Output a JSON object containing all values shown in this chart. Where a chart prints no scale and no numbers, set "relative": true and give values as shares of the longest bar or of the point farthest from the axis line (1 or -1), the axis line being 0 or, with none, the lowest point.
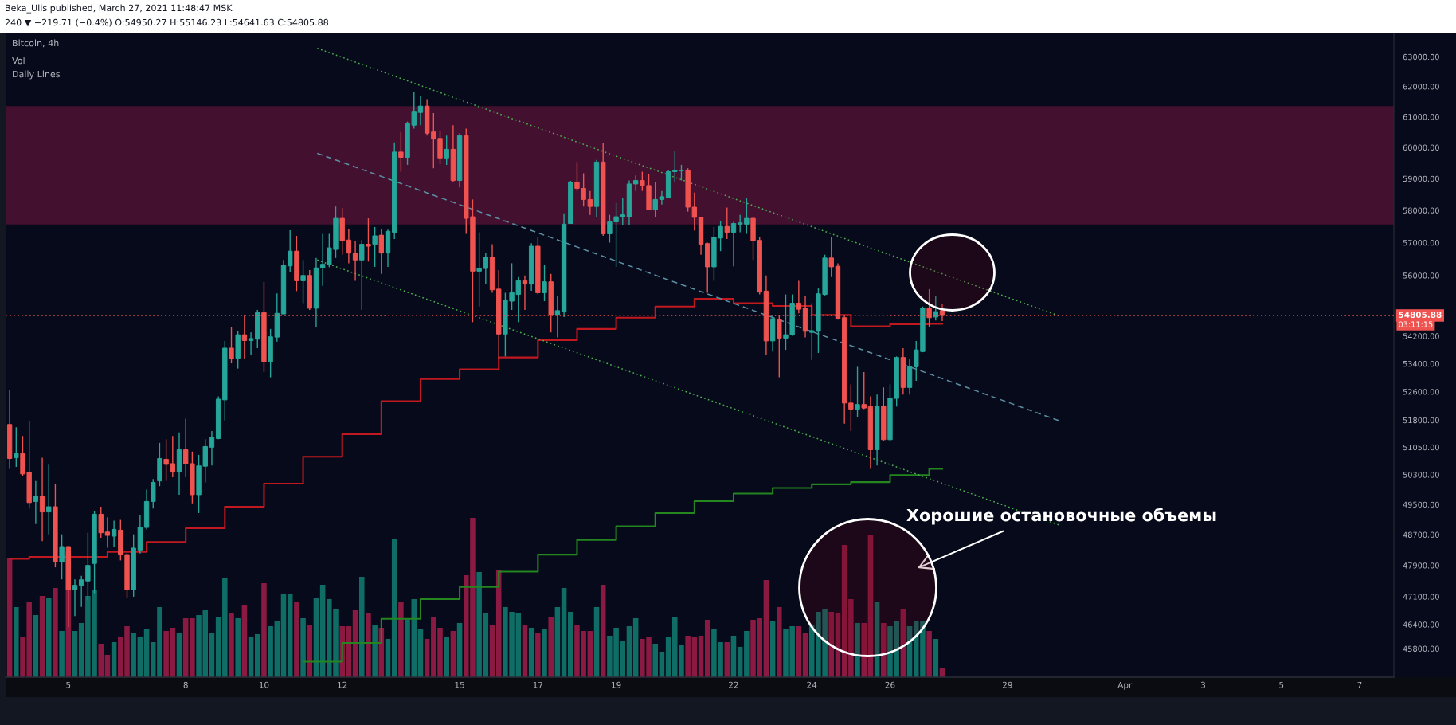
{
  "chart_data": [
    {
      "type": "candlestick",
      "title": "Bitcoin, 4h",
      "x": [
        "2021-03-03T12:00",
        "2021-03-03T16:00",
        "2021-03-03T20:00",
        "2021-03-04T00:00",
        "2021-03-04T04:00",
        "2021-03-04T08:00",
        "2021-03-04T12:00",
        "2021-03-04T16:00",
        "2021-03-04T20:00",
        "2021-03-05T00:00",
        "2021-03-05T04:00",
        "2021-03-05T08:00",
        "2021-03-05T12:00",
        "2021-03-05T16:00",
        "2021-03-05T20:00",
        "2021-03-06T00:00",
        "2021-03-06T04:00",
        "2021-03-06T08:00",
        "2021-03-06T12:00",
        "2021-03-06T16:00",
        "2021-03-06T20:00",
        "2021-03-07T00:00",
        "2021-03-07T04:00",
        "2021-03-07T08:00",
        "2021-03-07T12:00",
        "2021-03-07T16:00",
        "2021-03-07T20:00",
        "2021-03-08T00:00",
        "2021-03-08T04:00",
        "2021-03-08T08:00",
        "2021-03-08T12:00",
        "2021-03-08T16:00",
        "2021-03-08T20:00",
        "2021-03-09T00:00",
        "2021-03-09T04:00",
        "2021-03-09T08:00",
        "2021-03-09T12:00",
        "2021-03-09T16:00",
        "2021-03-09T20:00",
        "2021-03-10T00:00",
        "2021-03-10T04:00",
        "2021-03-10T08:00",
        "2021-03-10T12:00",
        "2021-03-10T16:00",
        "2021-03-10T20:00",
        "2021-03-11T00:00",
        "2021-03-11T04:00",
        "2021-03-11T08:00",
        "2021-03-11T12:00",
        "2021-03-11T16:00",
        "2021-03-11T20:00",
        "2021-03-12T00:00",
        "2021-03-12T04:00",
        "2021-03-12T08:00",
        "2021-03-12T12:00",
        "2021-03-12T16:00",
        "2021-03-12T20:00",
        "2021-03-13T00:00",
        "2021-03-13T04:00",
        "2021-03-13T08:00",
        "2021-03-13T12:00",
        "2021-03-13T16:00",
        "2021-03-13T20:00",
        "2021-03-14T00:00",
        "2021-03-14T04:00",
        "2021-03-14T08:00",
        "2021-03-14T12:00",
        "2021-03-14T16:00",
        "2021-03-14T20:00",
        "2021-03-15T00:00",
        "2021-03-15T04:00",
        "2021-03-15T08:00",
        "2021-03-15T12:00",
        "2021-03-15T16:00",
        "2021-03-15T20:00",
        "2021-03-16T00:00",
        "2021-03-16T04:00",
        "2021-03-16T08:00",
        "2021-03-16T12:00",
        "2021-03-16T16:00",
        "2021-03-16T20:00",
        "2021-03-17T00:00",
        "2021-03-17T04:00",
        "2021-03-17T08:00",
        "2021-03-17T12:00",
        "2021-03-17T16:00",
        "2021-03-17T20:00",
        "2021-03-18T00:00",
        "2021-03-18T04:00",
        "2021-03-18T08:00",
        "2021-03-18T12:00",
        "2021-03-18T16:00",
        "2021-03-18T20:00",
        "2021-03-19T00:00",
        "2021-03-19T04:00",
        "2021-03-19T08:00",
        "2021-03-19T12:00",
        "2021-03-19T16:00",
        "2021-03-19T20:00",
        "2021-03-20T00:00",
        "2021-03-20T04:00",
        "2021-03-20T08:00",
        "2021-03-20T12:00",
        "2021-03-20T16:00",
        "2021-03-20T20:00",
        "2021-03-21T00:00",
        "2021-03-21T04:00",
        "2021-03-21T08:00",
        "2021-03-21T12:00",
        "2021-03-21T16:00",
        "2021-03-21T20:00",
        "2021-03-22T00:00",
        "2021-03-22T04:00",
        "2021-03-22T08:00",
        "2021-03-22T12:00",
        "2021-03-22T16:00",
        "2021-03-22T20:00",
        "2021-03-23T00:00",
        "2021-03-23T04:00",
        "2021-03-23T08:00",
        "2021-03-23T12:00",
        "2021-03-23T16:00",
        "2021-03-23T20:00",
        "2021-03-24T00:00",
        "2021-03-24T04:00",
        "2021-03-24T08:00",
        "2021-03-24T12:00",
        "2021-03-24T16:00",
        "2021-03-24T20:00",
        "2021-03-25T00:00",
        "2021-03-25T04:00",
        "2021-03-25T08:00",
        "2021-03-25T12:00",
        "2021-03-25T16:00",
        "2021-03-25T20:00",
        "2021-03-26T00:00",
        "2021-03-26T04:00",
        "2021-03-26T08:00",
        "2021-03-26T12:00",
        "2021-03-26T16:00",
        "2021-03-26T20:00",
        "2021-03-27T00:00",
        "2021-03-27T04:00",
        "2021-03-27T08:00"
      ],
      "ohlc": [
        [
          51680,
          52650,
          50460,
          50740
        ],
        [
          50760,
          51600,
          50510,
          50880
        ],
        [
          50880,
          51360,
          50270,
          50320
        ],
        [
          50370,
          51770,
          49390,
          49550
        ],
        [
          49580,
          50130,
          48980,
          49720
        ],
        [
          49720,
          50760,
          48530,
          49300
        ],
        [
          49300,
          50570,
          48710,
          49440
        ],
        [
          49440,
          50040,
          47850,
          47990
        ],
        [
          47990,
          48710,
          47540,
          48390
        ],
        [
          48390,
          48400,
          46330,
          47280
        ],
        [
          47280,
          47540,
          46610,
          47390
        ],
        [
          47390,
          47630,
          46840,
          47530
        ],
        [
          47500,
          48750,
          47020,
          47900
        ],
        [
          47950,
          49330,
          47190,
          49240
        ],
        [
          49240,
          49440,
          48620,
          48750
        ],
        [
          48770,
          49160,
          48360,
          48680
        ],
        [
          48660,
          49070,
          48390,
          48840
        ],
        [
          48820,
          49090,
          48030,
          48170
        ],
        [
          48180,
          48210,
          47060,
          47280
        ],
        [
          47280,
          48710,
          47100,
          48350
        ],
        [
          48300,
          49210,
          48210,
          48890
        ],
        [
          48890,
          49900,
          48840,
          49580
        ],
        [
          49580,
          50180,
          49390,
          50090
        ],
        [
          50130,
          51170,
          49990,
          50740
        ],
        [
          50720,
          51270,
          50130,
          50580
        ],
        [
          50600,
          51360,
          50230,
          50370
        ],
        [
          50370,
          51460,
          49760,
          50980
        ],
        [
          50980,
          51840,
          50230,
          50600
        ],
        [
          50600,
          50930,
          49530,
          49760
        ],
        [
          49760,
          50840,
          49270,
          50540
        ],
        [
          50530,
          51270,
          50090,
          51070
        ],
        [
          51050,
          51500,
          50550,
          51330
        ],
        [
          51290,
          52470,
          51270,
          52390
        ],
        [
          52370,
          54060,
          51790,
          53850
        ],
        [
          53850,
          54460,
          53410,
          53540
        ],
        [
          53560,
          54340,
          53260,
          54240
        ],
        [
          54240,
          54820,
          53540,
          54070
        ],
        [
          54070,
          54310,
          53640,
          54130
        ],
        [
          54110,
          54970,
          53850,
          54890
        ],
        [
          54890,
          55810,
          53160,
          53460
        ],
        [
          53460,
          54410,
          53010,
          54180
        ],
        [
          54170,
          55460,
          54040,
          54870
        ],
        [
          54850,
          56470,
          54840,
          56320
        ],
        [
          56290,
          57380,
          56110,
          56740
        ],
        [
          56740,
          57210,
          55530,
          55840
        ],
        [
          55840,
          56470,
          55170,
          56000
        ],
        [
          56000,
          56160,
          54970,
          55020
        ],
        [
          55020,
          56530,
          54460,
          56230
        ],
        [
          56230,
          57270,
          55690,
          56340
        ],
        [
          56320,
          57270,
          56250,
          56840
        ],
        [
          56790,
          58120,
          56530,
          57750
        ],
        [
          57750,
          58070,
          56630,
          57050
        ],
        [
          57080,
          57430,
          56370,
          56680
        ],
        [
          56680,
          57050,
          55840,
          56470
        ],
        [
          56470,
          57080,
          54970,
          56950
        ],
        [
          56950,
          57750,
          56420,
          56890
        ],
        [
          56950,
          57480,
          56260,
          57210
        ],
        [
          57230,
          57430,
          56050,
          56680
        ],
        [
          56680,
          57400,
          56260,
          57350
        ],
        [
          57320,
          60160,
          57110,
          59850
        ],
        [
          59850,
          60500,
          59220,
          59680
        ],
        [
          59680,
          60840,
          59440,
          60780
        ],
        [
          60720,
          61810,
          60610,
          61180
        ],
        [
          61140,
          61690,
          60720,
          61350
        ],
        [
          61350,
          61580,
          60380,
          60460
        ],
        [
          60500,
          61120,
          59330,
          60270
        ],
        [
          60290,
          60550,
          59460,
          59660
        ],
        [
          59660,
          60380,
          59440,
          59940
        ],
        [
          59940,
          60720,
          58890,
          58940
        ],
        [
          58940,
          60460,
          58720,
          60380
        ],
        [
          60380,
          60610,
          57270,
          57750
        ],
        [
          57800,
          58340,
          54610,
          56130
        ],
        [
          56130,
          57320,
          55070,
          56210
        ],
        [
          56210,
          56680,
          55740,
          56550
        ],
        [
          56550,
          56950,
          55480,
          55570
        ],
        [
          55590,
          56160,
          53560,
          54260
        ],
        [
          54260,
          55480,
          53610,
          55260
        ],
        [
          55230,
          56370,
          54970,
          55480
        ],
        [
          55430,
          55950,
          54610,
          55840
        ],
        [
          55840,
          56000,
          54970,
          55740
        ],
        [
          55740,
          56980,
          55540,
          56890
        ],
        [
          56890,
          57160,
          55430,
          55480
        ],
        [
          55480,
          56320,
          55230,
          55810
        ],
        [
          55810,
          56050,
          54310,
          54820
        ],
        [
          54820,
          55380,
          54160,
          54950
        ],
        [
          54920,
          57910,
          54760,
          57570
        ],
        [
          57590,
          58930,
          57580,
          58880
        ],
        [
          58880,
          59530,
          58610,
          58690
        ],
        [
          58690,
          59170,
          58120,
          58340
        ],
        [
          58340,
          58610,
          57860,
          58120
        ],
        [
          58120,
          59600,
          57800,
          59530
        ],
        [
          59530,
          60130,
          57210,
          57270
        ],
        [
          57270,
          57860,
          57000,
          57640
        ],
        [
          57640,
          58230,
          56260,
          57800
        ],
        [
          57800,
          58400,
          57530,
          57860
        ],
        [
          57800,
          58940,
          57530,
          58830
        ],
        [
          58830,
          59100,
          58610,
          58940
        ],
        [
          58940,
          59220,
          58610,
          58780
        ],
        [
          58780,
          59140,
          58000,
          58020
        ],
        [
          58020,
          58890,
          57800,
          58340
        ],
        [
          58340,
          58610,
          58180,
          58430
        ],
        [
          58400,
          59270,
          58390,
          59220
        ],
        [
          59220,
          59880,
          58890,
          59270
        ],
        [
          59250,
          59440,
          58940,
          59270
        ],
        [
          59270,
          59330,
          57960,
          58100
        ],
        [
          58100,
          58560,
          57370,
          57780
        ],
        [
          57780,
          57800,
          56630,
          56950
        ],
        [
          56970,
          57000,
          55480,
          56260
        ],
        [
          56260,
          57480,
          55840,
          57160
        ],
        [
          57140,
          57670,
          56740,
          57500
        ],
        [
          57500,
          58090,
          57110,
          57320
        ],
        [
          57320,
          57640,
          56280,
          57590
        ],
        [
          57570,
          57860,
          57320,
          57610
        ],
        [
          57570,
          58400,
          57270,
          57750
        ],
        [
          57750,
          57780,
          56470,
          57050
        ],
        [
          57070,
          57160,
          55430,
          55500
        ],
        [
          55530,
          56000,
          53660,
          54060
        ],
        [
          54060,
          54820,
          53750,
          54710
        ],
        [
          54680,
          54820,
          53010,
          54140
        ],
        [
          54140,
          55430,
          53800,
          54240
        ],
        [
          54240,
          55430,
          54210,
          55170
        ],
        [
          55170,
          55840,
          54870,
          54990
        ],
        [
          55020,
          55380,
          54160,
          54340
        ],
        [
          54310,
          55170,
          53510,
          54360
        ],
        [
          54340,
          55610,
          53710,
          55450
        ],
        [
          55430,
          56630,
          55400,
          56530
        ],
        [
          56530,
          57180,
          55950,
          56260
        ],
        [
          56280,
          56370,
          54680,
          54710
        ],
        [
          54740,
          54820,
          51700,
          52280
        ],
        [
          52280,
          52810,
          51500,
          52110
        ],
        [
          52110,
          53310,
          51890,
          52240
        ],
        [
          52240,
          53160,
          52110,
          52140
        ],
        [
          52180,
          52470,
          50460,
          50980
        ],
        [
          50980,
          52520,
          50550,
          52200
        ],
        [
          52200,
          52720,
          51220,
          51260
        ],
        [
          51260,
          52810,
          51220,
          52420
        ],
        [
          52410,
          53610,
          52180,
          53580
        ],
        [
          53580,
          53850,
          52520,
          52720
        ],
        [
          52720,
          53540,
          52520,
          53310
        ],
        [
          53310,
          54060,
          52910,
          53800
        ],
        [
          53750,
          55070,
          53730,
          55020
        ],
        [
          55020,
          55590,
          54460,
          54740
        ],
        [
          54760,
          55380,
          54660,
          54920
        ],
        [
          54950.27,
          55146.23,
          54641.63,
          54805.88
        ]
      ],
      "colors": [
        "#ef5350",
        "#26a69a",
        "#ef5350",
        "#ef5350",
        "#26a69a",
        "#ef5350",
        "#26a69a",
        "#ef5350",
        "#26a69a",
        "#ef5350",
        "#26a69a",
        "#26a69a",
        "#26a69a",
        "#26a69a",
        "#ef5350",
        "#ef5350",
        "#26a69a",
        "#ef5350",
        "#ef5350",
        "#26a69a",
        "#26a69a",
        "#26a69a",
        "#26a69a",
        "#26a69a",
        "#ef5350",
        "#ef5350",
        "#26a69a",
        "#ef5350",
        "#ef5350",
        "#26a69a",
        "#26a69a",
        "#26a69a",
        "#26a69a",
        "#26a69a",
        "#ef5350",
        "#26a69a",
        "#ef5350",
        "#26a69a",
        "#26a69a",
        "#ef5350",
        "#26a69a",
        "#26a69a",
        "#26a69a",
        "#26a69a",
        "#ef5350",
        "#26a69a",
        "#ef5350",
        "#26a69a",
        "#26a69a",
        "#26a69a",
        "#26a69a",
        "#ef5350",
        "#ef5350",
        "#ef5350",
        "#26a69a",
        "#ef5350",
        "#26a69a",
        "#ef5350",
        "#26a69a",
        "#26a69a",
        "#ef5350",
        "#26a69a",
        "#26a69a",
        "#26a69a",
        "#ef5350",
        "#ef5350",
        "#ef5350",
        "#26a69a",
        "#ef5350",
        "#26a69a",
        "#ef5350",
        "#ef5350",
        "#26a69a",
        "#26a69a",
        "#ef5350",
        "#ef5350",
        "#26a69a",
        "#26a69a",
        "#26a69a",
        "#ef5350",
        "#26a69a",
        "#ef5350",
        "#26a69a",
        "#ef5350",
        "#26a69a",
        "#26a69a",
        "#26a69a",
        "#ef5350",
        "#ef5350",
        "#ef5350",
        "#26a69a",
        "#ef5350",
        "#26a69a",
        "#26a69a",
        "#26a69a",
        "#26a69a",
        "#26a69a",
        "#ef5350",
        "#ef5350",
        "#26a69a",
        "#26a69a",
        "#26a69a",
        "#26a69a",
        "#26a69a",
        "#ef5350",
        "#ef5350",
        "#ef5350",
        "#ef5350",
        "#26a69a",
        "#26a69a",
        "#ef5350",
        "#26a69a",
        "#26a69a",
        "#26a69a",
        "#ef5350",
        "#ef5350",
        "#ef5350",
        "#26a69a",
        "#ef5350",
        "#26a69a",
        "#26a69a",
        "#ef5350",
        "#ef5350",
        "#26a69a",
        "#26a69a",
        "#26a69a",
        "#ef5350",
        "#ef5350",
        "#ef5350",
        "#ef5350",
        "#26a69a",
        "#ef5350",
        "#ef5350",
        "#26a69a",
        "#ef5350",
        "#26a69a",
        "#26a69a",
        "#ef5350",
        "#26a69a",
        "#26a69a",
        "#26a69a",
        "#ef5350",
        "#26a69a",
        "#ef5350"
      ],
      "log": true,
      "xlim": [
        "2021-03-03T09:30",
        "2021-04-07T21:00"
      ],
      "ylim": [
        45100,
        63800
      ],
      "xticks": [
        {
          "value": "2021-03-05",
          "label": "5"
        },
        {
          "value": "2021-03-08",
          "label": "8"
        },
        {
          "value": "2021-03-10",
          "label": "10"
        },
        {
          "value": "2021-03-12",
          "label": "12"
        },
        {
          "value": "2021-03-15",
          "label": "15"
        },
        {
          "value": "2021-03-17",
          "label": "17"
        },
        {
          "value": "2021-03-19",
          "label": "19"
        },
        {
          "value": "2021-03-22",
          "label": "22"
        },
        {
          "value": "2021-03-24",
          "label": "24"
        },
        {
          "value": "2021-03-26",
          "label": "26"
        },
        {
          "value": "2021-03-29",
          "label": "29"
        },
        {
          "value": "2021-04-01",
          "label": "Apr"
        },
        {
          "value": "2021-04-03",
          "label": "3"
        },
        {
          "value": "2021-04-05",
          "label": "5"
        },
        {
          "value": "2021-04-07",
          "label": "7"
        }
      ],
      "yticks": [
        {
          "value": 63000,
          "label": "63000.00"
        },
        {
          "value": 62000,
          "label": "62000.00"
        },
        {
          "value": 61000,
          "label": "61000.00"
        },
        {
          "value": 60000,
          "label": "60000.00"
        },
        {
          "value": 59000,
          "label": "59000.00"
        },
        {
          "value": 58000,
          "label": "58000.00"
        },
        {
          "value": 57000,
          "label": "57000.00"
        },
        {
          "value": 56000,
          "label": "56000.00"
        },
        {
          "value": 54200,
          "label": "54200.00"
        },
        {
          "value": 53400,
          "label": "53400.00"
        },
        {
          "value": 52600,
          "label": "52600.00"
        },
        {
          "value": 51800,
          "label": "51800.00"
        },
        {
          "value": 51050,
          "label": "51050.00"
        },
        {
          "value": 50300,
          "label": "50300.00"
        },
        {
          "value": 49500,
          "label": "49500.00"
        },
        {
          "value": 48700,
          "label": "48700.00"
        },
        {
          "value": 47900,
          "label": "47900.00"
        },
        {
          "value": 47100,
          "label": "47100.00"
        },
        {
          "value": 46400,
          "label": "46400.00"
        },
        {
          "value": 45800,
          "label": "45800.00"
        }
      ],
      "bands": [
        {
          "axis": "y",
          "from": 57560,
          "to": 61350,
          "color": "#44102f"
        }
      ],
      "ref_lines": [
        {
          "axis": "y",
          "value": 54805.88,
          "label": "54805.88",
          "color": "#ef5350",
          "line_style": "dotted"
        }
      ],
      "series": [
        {
          "type": "step",
          "color": "#c2181f",
          "x": [
            "2021-03-03T12:00",
            "2021-03-04",
            "2021-03-05",
            "2021-03-06",
            "2021-03-07",
            "2021-03-08",
            "2021-03-09",
            "2021-03-10",
            "2021-03-11",
            "2021-03-12",
            "2021-03-13",
            "2021-03-14",
            "2021-03-15",
            "2021-03-16",
            "2021-03-17",
            "2021-03-18",
            "2021-03-19",
            "2021-03-20",
            "2021-03-21",
            "2021-03-22",
            "2021-03-23",
            "2021-03-24",
            "2021-03-25",
            "2021-03-26",
            "2021-03-27",
            "2021-03-27T08:00"
          ],
          "values": [
            48070,
            48120,
            48120,
            48250,
            48510,
            48870,
            49440,
            50060,
            50790,
            51410,
            52330,
            52960,
            53240,
            53580,
            54080,
            54410,
            54740,
            55070,
            55300,
            55170,
            55090,
            54820,
            54490,
            54550,
            54560,
            54560
          ]
        },
        {
          "type": "step",
          "color": "#23861f",
          "x": [
            "2021-03-11",
            "2021-03-12",
            "2021-03-13",
            "2021-03-14",
            "2021-03-15",
            "2021-03-16",
            "2021-03-17",
            "2021-03-18",
            "2021-03-19",
            "2021-03-20",
            "2021-03-21",
            "2021-03-22",
            "2021-03-23",
            "2021-03-24",
            "2021-03-25",
            "2021-03-26",
            "2021-03-27",
            "2021-03-27T08:00"
          ],
          "values": [
            45480,
            45940,
            46540,
            47040,
            47350,
            47740,
            48180,
            48560,
            48920,
            49270,
            49590,
            49790,
            49940,
            50040,
            50100,
            50290,
            50460,
            50460
          ]
        },
        {
          "type": "line",
          "color": "#4caf50",
          "line_style": "dotted",
          "x": [
            "2021-03-11T08:40",
            "2021-03-30T07:20"
          ],
          "values": [
            63290,
            54800
          ]
        },
        {
          "type": "line",
          "color": "#5b8fa3",
          "line_style": "dashed",
          "x": [
            "2021-03-11T08:40",
            "2021-03-30T07:20"
          ],
          "values": [
            59810,
            51790
          ]
        },
        {
          "type": "line",
          "color": "#4caf50",
          "line_style": "dotted",
          "x": [
            "2021-03-11T08:40",
            "2021-03-30T07:20"
          ],
          "values": [
            56470,
            48960
          ]
        }
      ],
      "annotations": [
        "Beka_Ulis published, March 27, 2021 11:48:47 MSK",
        "240 ▼ −219.71 (−0.4%) O:54950.27 H:55146.23 L:54641.63 C:54805.88",
        "Vol",
        "Daily Lines",
        "03:11:15",
        "Хорошие остановочные объемы"
      ]
    },
    {
      "type": "bar",
      "relative": true,
      "tick_labels": false,
      "x": [
        "2021-03-03T12:00",
        "2021-03-03T16:00",
        "2021-03-03T20:00",
        "2021-03-04T00:00",
        "2021-03-04T04:00",
        "2021-03-04T08:00",
        "2021-03-04T12:00",
        "2021-03-04T16:00",
        "2021-03-04T20:00",
        "2021-03-05T00:00",
        "2021-03-05T04:00",
        "2021-03-05T08:00",
        "2021-03-05T12:00",
        "2021-03-05T16:00",
        "2021-03-05T20:00",
        "2021-03-06T00:00",
        "2021-03-06T04:00",
        "2021-03-06T08:00",
        "2021-03-06T12:00",
        "2021-03-06T16:00",
        "2021-03-06T20:00",
        "2021-03-07T00:00",
        "2021-03-07T04:00",
        "2021-03-07T08:00",
        "2021-03-07T12:00",
        "2021-03-07T16:00",
        "2021-03-07T20:00",
        "2021-03-08T00:00",
        "2021-03-08T04:00",
        "2021-03-08T08:00",
        "2021-03-08T12:00",
        "2021-03-08T16:00",
        "2021-03-08T20:00",
        "2021-03-09T00:00",
        "2021-03-09T04:00",
        "2021-03-09T08:00",
        "2021-03-09T12:00",
        "2021-03-09T16:00",
        "2021-03-09T20:00",
        "2021-03-10T00:00",
        "2021-03-10T04:00",
        "2021-03-10T08:00",
        "2021-03-10T12:00",
        "2021-03-10T16:00",
        "2021-03-10T20:00",
        "2021-03-11T00:00",
        "2021-03-11T04:00",
        "2021-03-11T08:00",
        "2021-03-11T12:00",
        "2021-03-11T16:00",
        "2021-03-11T20:00",
        "2021-03-12T00:00",
        "2021-03-12T04:00",
        "2021-03-12T08:00",
        "2021-03-12T12:00",
        "2021-03-12T16:00",
        "2021-03-12T20:00",
        "2021-03-13T00:00",
        "2021-03-13T04:00",
        "2021-03-13T08:00",
        "2021-03-13T12:00",
        "2021-03-13T16:00",
        "2021-03-13T20:00",
        "2021-03-14T00:00",
        "2021-03-14T04:00",
        "2021-03-14T08:00",
        "2021-03-14T12:00",
        "2021-03-14T16:00",
        "2021-03-14T20:00",
        "2021-03-15T00:00",
        "2021-03-15T04:00",
        "2021-03-15T08:00",
        "2021-03-15T12:00",
        "2021-03-15T16:00",
        "2021-03-15T20:00",
        "2021-03-16T00:00",
        "2021-03-16T04:00",
        "2021-03-16T08:00",
        "2021-03-16T12:00",
        "2021-03-16T16:00",
        "2021-03-16T20:00",
        "2021-03-17T00:00",
        "2021-03-17T04:00",
        "2021-03-17T08:00",
        "2021-03-17T12:00",
        "2021-03-17T16:00",
        "2021-03-17T20:00",
        "2021-03-18T00:00",
        "2021-03-18T04:00",
        "2021-03-18T08:00",
        "2021-03-18T12:00",
        "2021-03-18T16:00",
        "2021-03-18T20:00",
        "2021-03-19T00:00",
        "2021-03-19T04:00",
        "2021-03-19T08:00",
        "2021-03-19T12:00",
        "2021-03-19T16:00",
        "2021-03-19T20:00",
        "2021-03-20T00:00",
        "2021-03-20T04:00",
        "2021-03-20T08:00",
        "2021-03-20T12:00",
        "2021-03-20T16:00",
        "2021-03-20T20:00",
        "2021-03-21T00:00",
        "2021-03-21T04:00",
        "2021-03-21T08:00",
        "2021-03-21T12:00",
        "2021-03-21T16:00",
        "2021-03-21T20:00",
        "2021-03-22T00:00",
        "2021-03-22T04:00",
        "2021-03-22T08:00",
        "2021-03-22T12:00",
        "2021-03-22T16:00",
        "2021-03-22T20:00",
        "2021-03-23T00:00",
        "2021-03-23T04:00",
        "2021-03-23T08:00",
        "2021-03-23T12:00",
        "2021-03-23T16:00",
        "2021-03-23T20:00",
        "2021-03-24T00:00",
        "2021-03-24T04:00",
        "2021-03-24T08:00",
        "2021-03-24T12:00",
        "2021-03-24T16:00",
        "2021-03-24T20:00",
        "2021-03-25T00:00",
        "2021-03-25T04:00",
        "2021-03-25T08:00",
        "2021-03-25T12:00",
        "2021-03-25T16:00",
        "2021-03-25T20:00",
        "2021-03-26T00:00",
        "2021-03-26T04:00",
        "2021-03-26T08:00",
        "2021-03-26T12:00",
        "2021-03-26T16:00",
        "2021-03-26T20:00",
        "2021-03-27T00:00",
        "2021-03-27T04:00",
        "2021-03-27T08:00"
      ],
      "xlim": [
        "2021-03-03T09:30",
        "2021-04-07T21:00"
      ],
      "values": [
        0.75,
        0.44,
        0.25,
        0.47,
        0.39,
        0.51,
        0.5,
        0.56,
        0.29,
        0.79,
        0.29,
        0.34,
        0.51,
        0.55,
        0.21,
        0.14,
        0.22,
        0.25,
        0.32,
        0.28,
        0.25,
        0.3,
        0.22,
        0.44,
        0.29,
        0.31,
        0.28,
        0.37,
        0.37,
        0.39,
        0.42,
        0.28,
        0.38,
        0.62,
        0.4,
        0.37,
        0.45,
        0.25,
        0.27,
        0.59,
        0.32,
        0.35,
        0.52,
        0.52,
        0.47,
        0.37,
        0.33,
        0.5,
        0.58,
        0.49,
        0.43,
        0.32,
        0.32,
        0.42,
        0.63,
        0.4,
        0.33,
        0.31,
        0.24,
        0.87,
        0.47,
        0.37,
        0.49,
        0.3,
        0.24,
        0.38,
        0.31,
        0.25,
        0.29,
        0.34,
        0.64,
        1,
        0.66,
        0.4,
        0.33,
        0.67,
        0.44,
        0.41,
        0.4,
        0.33,
        0.31,
        0.28,
        0.3,
        0.38,
        0.44,
        0.56,
        0.41,
        0.33,
        0.29,
        0.29,
        0.44,
        0.58,
        0.26,
        0.31,
        0.23,
        0.32,
        0.37,
        0.24,
        0.25,
        0.21,
        0.16,
        0.25,
        0.38,
        0.2,
        0.26,
        0.25,
        0.26,
        0.36,
        0.3,
        0.22,
        0.22,
        0.26,
        0.19,
        0.29,
        0.36,
        0.37,
        0.61,
        0.35,
        0.44,
        0.3,
        0.32,
        0.32,
        0.28,
        0.33,
        0.41,
        0.43,
        0.41,
        0.4,
        0.83,
        0.49,
        0.34,
        0.34,
        0.89,
        0.47,
        0.34,
        0.32,
        0.35,
        0.43,
        0.32,
        0.35,
        0.35,
        0.29,
        0.24,
        0.06
      ],
      "colors": [
        "#8a1a42",
        "#0f6d66",
        "#8a1a42",
        "#8a1a42",
        "#0f6d66",
        "#8a1a42",
        "#0f6d66",
        "#8a1a42",
        "#0f6d66",
        "#8a1a42",
        "#0f6d66",
        "#0f6d66",
        "#0f6d66",
        "#0f6d66",
        "#8a1a42",
        "#8a1a42",
        "#0f6d66",
        "#8a1a42",
        "#8a1a42",
        "#0f6d66",
        "#0f6d66",
        "#0f6d66",
        "#0f6d66",
        "#0f6d66",
        "#8a1a42",
        "#8a1a42",
        "#0f6d66",
        "#8a1a42",
        "#8a1a42",
        "#0f6d66",
        "#0f6d66",
        "#0f6d66",
        "#0f6d66",
        "#0f6d66",
        "#8a1a42",
        "#0f6d66",
        "#8a1a42",
        "#0f6d66",
        "#0f6d66",
        "#8a1a42",
        "#0f6d66",
        "#0f6d66",
        "#0f6d66",
        "#0f6d66",
        "#8a1a42",
        "#0f6d66",
        "#8a1a42",
        "#0f6d66",
        "#0f6d66",
        "#0f6d66",
        "#0f6d66",
        "#8a1a42",
        "#8a1a42",
        "#8a1a42",
        "#0f6d66",
        "#8a1a42",
        "#0f6d66",
        "#8a1a42",
        "#0f6d66",
        "#0f6d66",
        "#8a1a42",
        "#0f6d66",
        "#0f6d66",
        "#0f6d66",
        "#8a1a42",
        "#8a1a42",
        "#8a1a42",
        "#0f6d66",
        "#8a1a42",
        "#0f6d66",
        "#8a1a42",
        "#8a1a42",
        "#0f6d66",
        "#0f6d66",
        "#8a1a42",
        "#8a1a42",
        "#0f6d66",
        "#0f6d66",
        "#0f6d66",
        "#8a1a42",
        "#0f6d66",
        "#8a1a42",
        "#0f6d66",
        "#8a1a42",
        "#0f6d66",
        "#0f6d66",
        "#0f6d66",
        "#8a1a42",
        "#8a1a42",
        "#8a1a42",
        "#0f6d66",
        "#8a1a42",
        "#0f6d66",
        "#0f6d66",
        "#0f6d66",
        "#0f6d66",
        "#0f6d66",
        "#8a1a42",
        "#8a1a42",
        "#0f6d66",
        "#0f6d66",
        "#0f6d66",
        "#0f6d66",
        "#0f6d66",
        "#8a1a42",
        "#8a1a42",
        "#8a1a42",
        "#8a1a42",
        "#0f6d66",
        "#0f6d66",
        "#8a1a42",
        "#0f6d66",
        "#0f6d66",
        "#0f6d66",
        "#8a1a42",
        "#8a1a42",
        "#8a1a42",
        "#0f6d66",
        "#8a1a42",
        "#0f6d66",
        "#0f6d66",
        "#8a1a42",
        "#8a1a42",
        "#0f6d66",
        "#0f6d66",
        "#0f6d66",
        "#8a1a42",
        "#8a1a42",
        "#8a1a42",
        "#8a1a42",
        "#0f6d66",
        "#8a1a42",
        "#8a1a42",
        "#0f6d66",
        "#8a1a42",
        "#0f6d66",
        "#0f6d66",
        "#8a1a42",
        "#0f6d66",
        "#0f6d66",
        "#0f6d66",
        "#8a1a42",
        "#0f6d66",
        "#8a1a42"
      ]
    }
  ]
}
